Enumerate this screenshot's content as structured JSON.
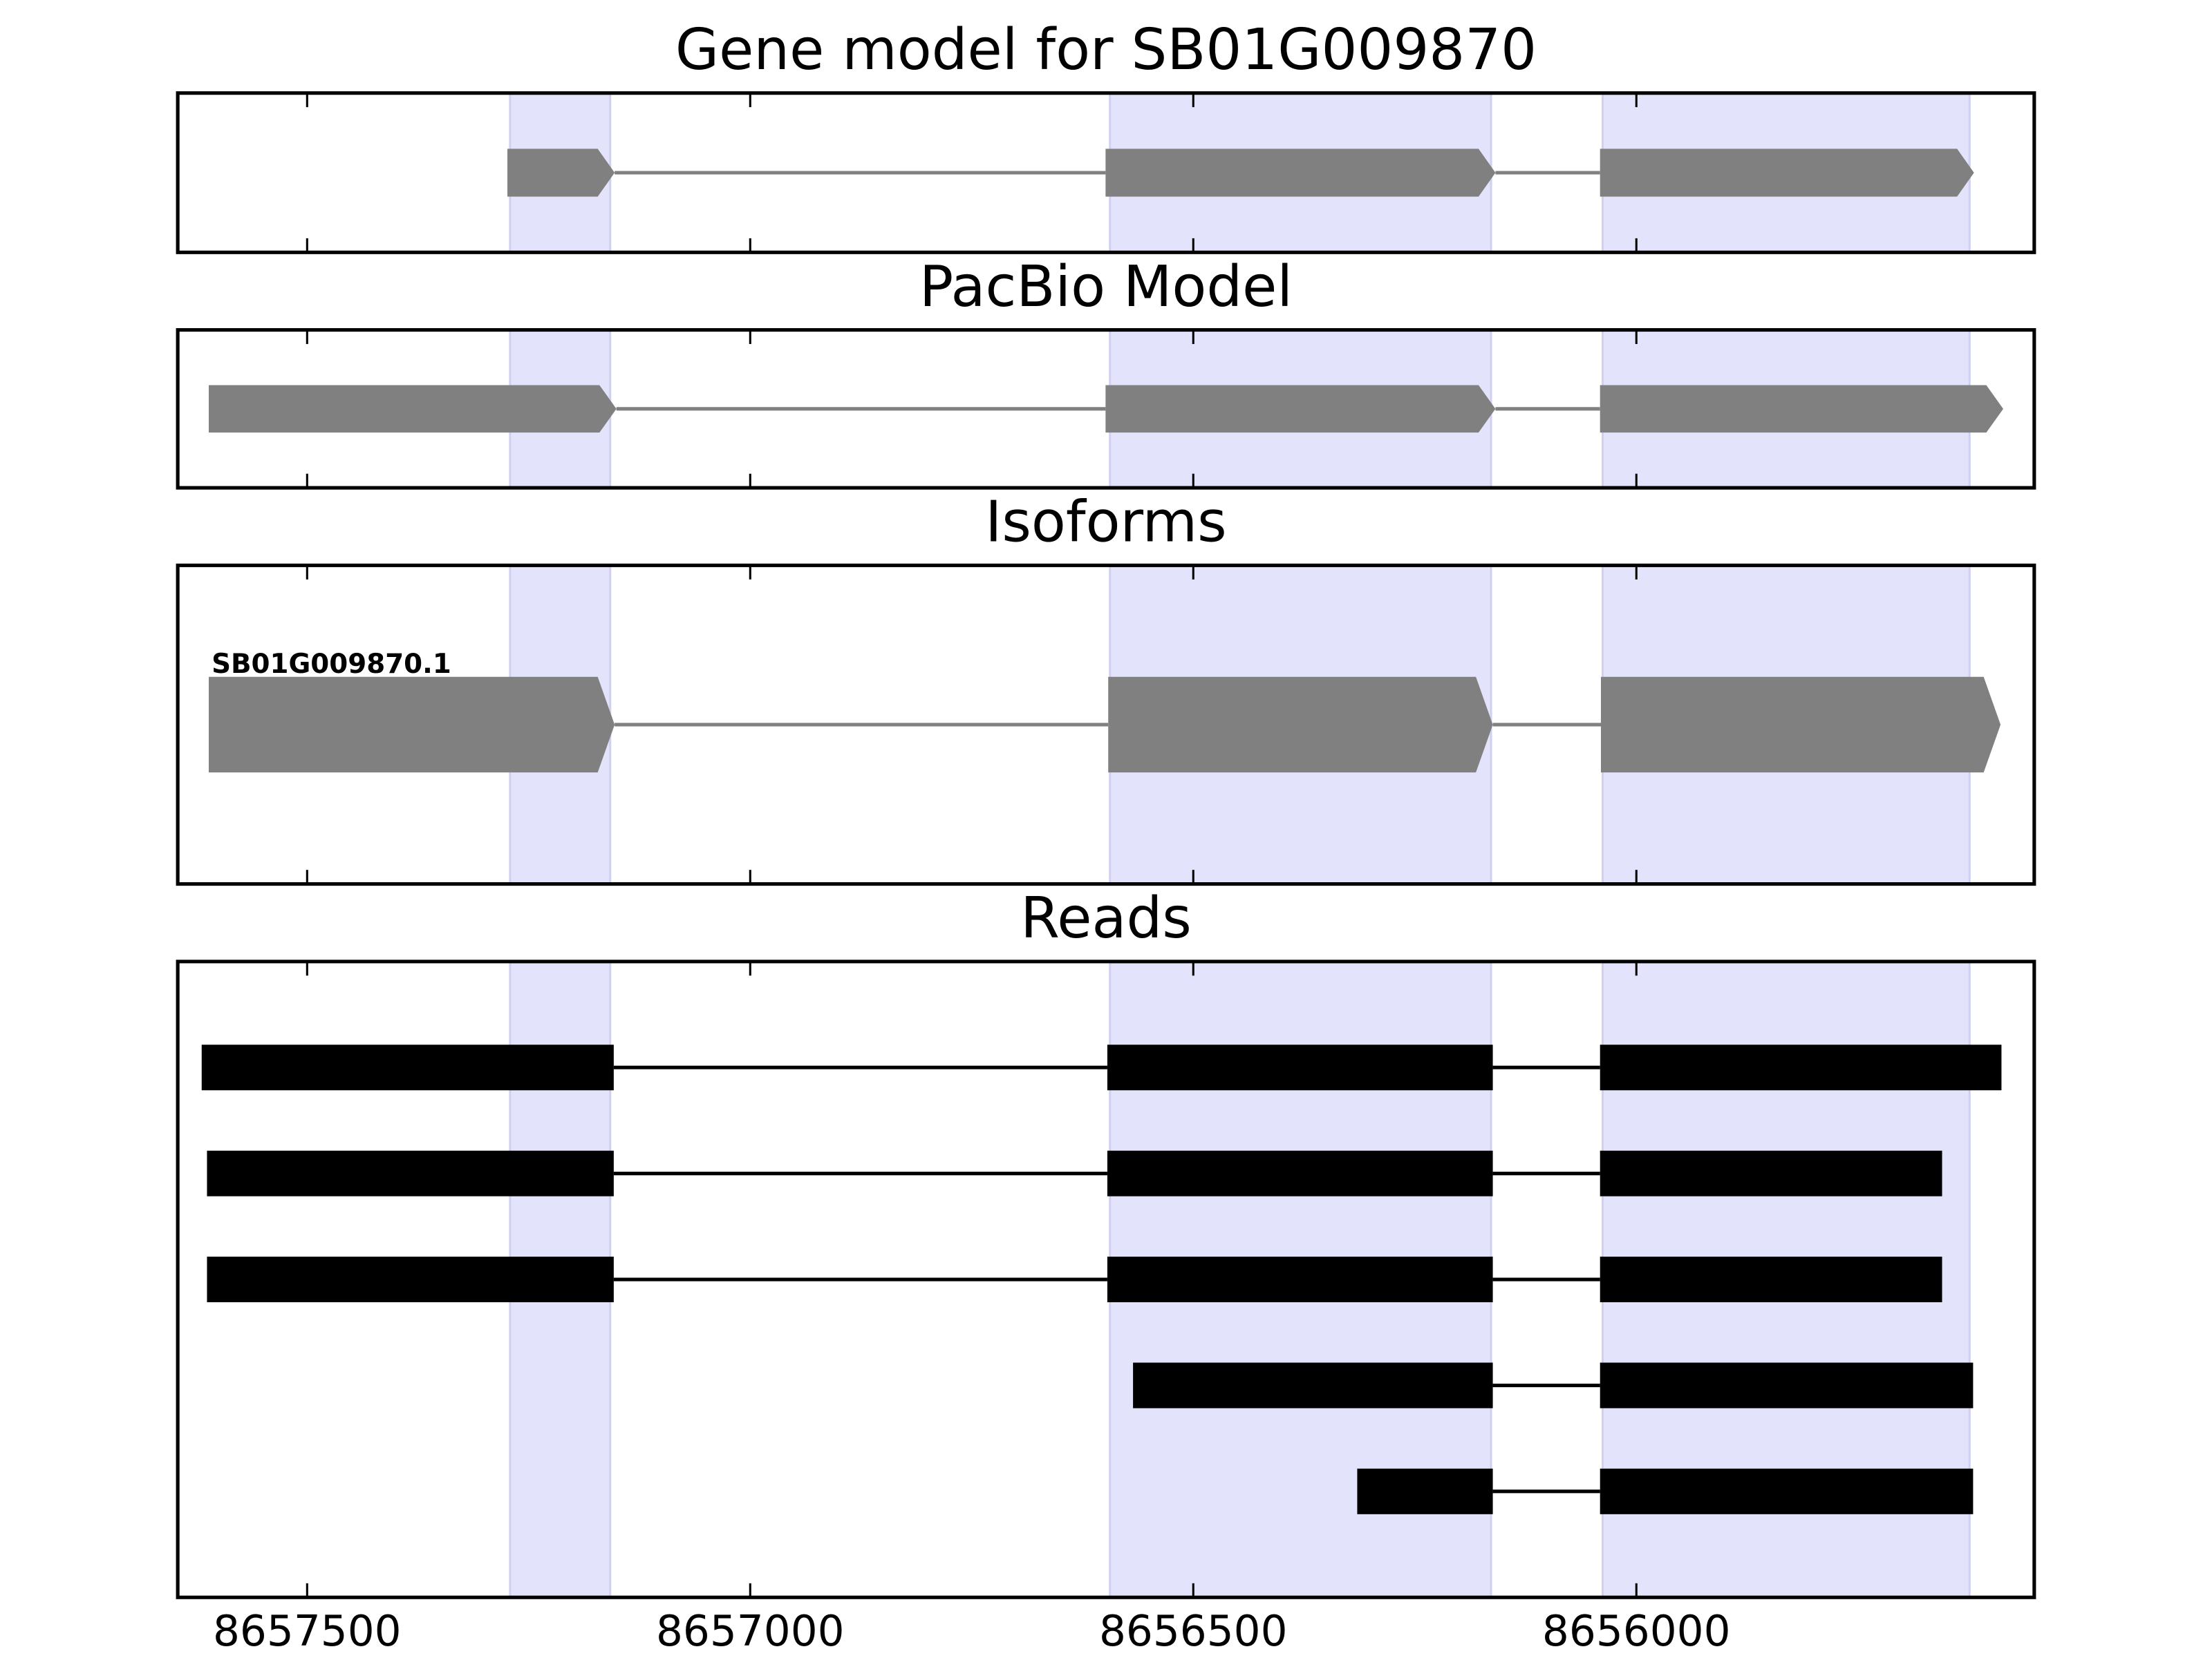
{
  "chart_data": [
    {
      "type": "gene",
      "title": "Gene model for SB01G009870",
      "shape": "arrow",
      "color": "#808080",
      "highlight_color": "#e3e3fc",
      "xlim": [
        8657646,
        8655551
      ],
      "xticks": [
        8657500,
        8657000,
        8656500,
        8656000
      ],
      "spans": [
        [
          8657271,
          8657158
        ],
        [
          8656594,
          8656164
        ],
        [
          8656038,
          8655624
        ]
      ],
      "features": [
        {
          "exons": [
            [
              8657274,
              8657153
            ],
            [
              8656599,
              8656159
            ],
            [
              8656041,
              8655619
            ]
          ]
        }
      ]
    },
    {
      "type": "gene",
      "title": "PacBio Model",
      "shape": "arrow",
      "color": "#808080",
      "highlight_color": "#e3e3fc",
      "xlim": [
        8657646,
        8655551
      ],
      "xticks": [
        8657500,
        8657000,
        8656500,
        8656000
      ],
      "spans": [
        [
          8657271,
          8657158
        ],
        [
          8656594,
          8656164
        ],
        [
          8656038,
          8655624
        ]
      ],
      "features": [
        {
          "exons": [
            [
              8657611,
              8657151
            ],
            [
              8656599,
              8656159
            ],
            [
              8656041,
              8655586
            ]
          ]
        }
      ]
    },
    {
      "type": "gene",
      "title": "Isoforms",
      "shape": "arrow",
      "color": "#808080",
      "highlight_color": "#e3e3fc",
      "xlim": [
        8657646,
        8655551
      ],
      "xticks": [
        8657500,
        8657000,
        8656500,
        8656000
      ],
      "spans": [
        [
          8657271,
          8657158
        ],
        [
          8656594,
          8656164
        ],
        [
          8656038,
          8655624
        ]
      ],
      "features": [
        {
          "name": "SB01G009870.1",
          "exons": [
            [
              8657611,
              8657153
            ],
            [
              8656596,
              8656162
            ],
            [
              8656040,
              8655589
            ]
          ]
        }
      ]
    },
    {
      "type": "gene",
      "title": "Reads",
      "shape": "box",
      "color": "#000000",
      "highlight_color": "#e3e3fc",
      "xlim": [
        8657646,
        8655551
      ],
      "xticks": [
        8657500,
        8657000,
        8656500,
        8656000
      ],
      "spans": [
        [
          8657271,
          8657158
        ],
        [
          8656594,
          8656164
        ],
        [
          8656038,
          8655624
        ]
      ],
      "features": [
        {
          "exons": [
            [
              8657619,
              8657154
            ],
            [
              8656597,
              8656162
            ],
            [
              8656041,
              8655588
            ]
          ]
        },
        {
          "exons": [
            [
              8657613,
              8657154
            ],
            [
              8656597,
              8656162
            ],
            [
              8656041,
              8655655
            ]
          ]
        },
        {
          "exons": [
            [
              8657613,
              8657154
            ],
            [
              8656597,
              8656162
            ],
            [
              8656041,
              8655655
            ]
          ]
        },
        {
          "exons": [
            [
              8656568,
              8656162
            ],
            [
              8656041,
              8655620
            ]
          ]
        },
        {
          "exons": [
            [
              8656315,
              8656162
            ],
            [
              8656041,
              8655620
            ]
          ]
        }
      ]
    }
  ]
}
